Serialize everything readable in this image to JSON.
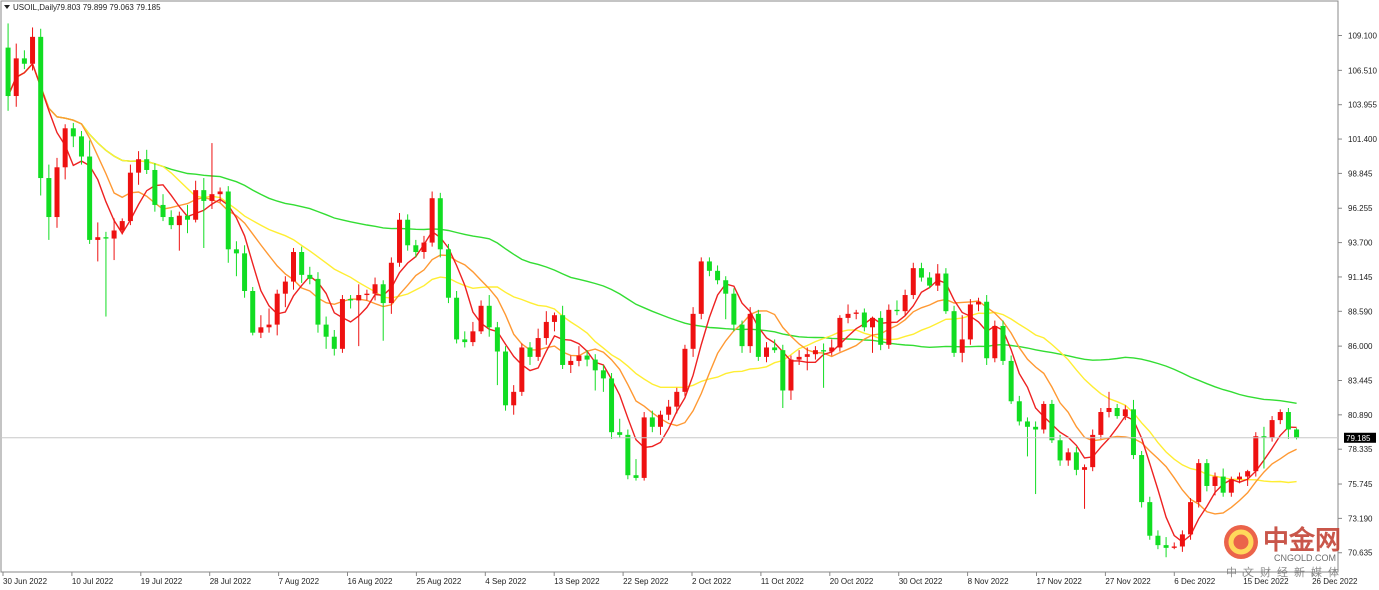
{
  "header": {
    "symbol": "USOIL,Daily",
    "ohlc": "79.803 79.899 79.063 79.185"
  },
  "current_price": "79.185",
  "watermark": {
    "brand": "中金网",
    "domain": "CNGOLD.COM",
    "tagline": "中文财经新媒体"
  },
  "colors": {
    "up": "#ee1111",
    "down": "#11dd22",
    "ma_fast": "#ee2222",
    "ma_mid": "#ff9933",
    "ma_slow": "#ffee33",
    "ma_long": "#33dd33",
    "price_line": "#c8c8c8"
  },
  "chart_data": {
    "type": "candlestick",
    "y_tick_labels": [
      "109.100",
      "106.510",
      "103.955",
      "101.400",
      "98.845",
      "96.255",
      "93.700",
      "91.145",
      "88.590",
      "86.000",
      "83.445",
      "80.890",
      "78.335",
      "75.745",
      "73.190",
      "70.635"
    ],
    "ylim": [
      69.5,
      110.7
    ],
    "x_tick_labels": [
      "30 Jun 2022",
      "10 Jul 2022",
      "19 Jul 2022",
      "28 Jul 2022",
      "7 Aug 2022",
      "16 Aug 2022",
      "25 Aug 2022",
      "4 Sep 2022",
      "13 Sep 2022",
      "22 Sep 2022",
      "2 Oct 2022",
      "11 Oct 2022",
      "20 Oct 2022",
      "30 Oct 2022",
      "8 Nov 2022",
      "17 Nov 2022",
      "27 Nov 2022",
      "6 Dec 2022",
      "15 Dec 2022",
      "26 Dec 2022"
    ],
    "candles": [
      {
        "o": 108.2,
        "h": 110.0,
        "l": 103.5,
        "c": 104.6
      },
      {
        "o": 104.6,
        "h": 108.5,
        "l": 103.8,
        "c": 107.4
      },
      {
        "o": 107.4,
        "h": 108.0,
        "l": 106.6,
        "c": 107.0
      },
      {
        "o": 107.0,
        "h": 109.7,
        "l": 106.5,
        "c": 109.0
      },
      {
        "o": 109.0,
        "h": 109.6,
        "l": 97.2,
        "c": 98.5
      },
      {
        "o": 98.5,
        "h": 99.5,
        "l": 93.9,
        "c": 95.6
      },
      {
        "o": 95.6,
        "h": 100.0,
        "l": 94.8,
        "c": 99.3
      },
      {
        "o": 99.3,
        "h": 102.5,
        "l": 98.4,
        "c": 102.2
      },
      {
        "o": 102.2,
        "h": 102.6,
        "l": 100.8,
        "c": 101.6
      },
      {
        "o": 101.6,
        "h": 102.0,
        "l": 99.5,
        "c": 100.1
      },
      {
        "o": 100.1,
        "h": 101.3,
        "l": 93.6,
        "c": 93.9
      },
      {
        "o": 93.9,
        "h": 95.2,
        "l": 92.3,
        "c": 94.1
      },
      {
        "o": 94.1,
        "h": 94.5,
        "l": 88.2,
        "c": 94.0
      },
      {
        "o": 94.0,
        "h": 95.5,
        "l": 92.4,
        "c": 94.6
      },
      {
        "o": 94.6,
        "h": 95.5,
        "l": 94.3,
        "c": 95.3
      },
      {
        "o": 95.3,
        "h": 99.5,
        "l": 95.0,
        "c": 98.9
      },
      {
        "o": 98.9,
        "h": 100.5,
        "l": 98.0,
        "c": 99.9
      },
      {
        "o": 99.9,
        "h": 100.6,
        "l": 98.8,
        "c": 99.1
      },
      {
        "o": 99.1,
        "h": 99.6,
        "l": 96.0,
        "c": 96.5
      },
      {
        "o": 96.5,
        "h": 97.3,
        "l": 95.3,
        "c": 95.6
      },
      {
        "o": 95.6,
        "h": 96.1,
        "l": 94.7,
        "c": 95.0
      },
      {
        "o": 95.0,
        "h": 96.0,
        "l": 93.1,
        "c": 95.7
      },
      {
        "o": 95.7,
        "h": 96.5,
        "l": 94.4,
        "c": 95.4
      },
      {
        "o": 95.4,
        "h": 98.3,
        "l": 95.2,
        "c": 97.6
      },
      {
        "o": 97.6,
        "h": 98.5,
        "l": 93.3,
        "c": 96.8
      },
      {
        "o": 96.8,
        "h": 101.1,
        "l": 96.2,
        "c": 97.3
      },
      {
        "o": 97.3,
        "h": 97.8,
        "l": 96.7,
        "c": 97.5
      },
      {
        "o": 97.5,
        "h": 97.9,
        "l": 92.2,
        "c": 93.2
      },
      {
        "o": 93.2,
        "h": 93.8,
        "l": 91.2,
        "c": 92.9
      },
      {
        "o": 92.9,
        "h": 93.5,
        "l": 89.6,
        "c": 90.1
      },
      {
        "o": 90.1,
        "h": 90.4,
        "l": 86.8,
        "c": 87.0
      },
      {
        "o": 87.0,
        "h": 88.3,
        "l": 86.6,
        "c": 87.4
      },
      {
        "o": 87.4,
        "h": 88.8,
        "l": 87.0,
        "c": 87.6
      },
      {
        "o": 87.6,
        "h": 90.2,
        "l": 86.8,
        "c": 89.9
      },
      {
        "o": 89.9,
        "h": 91.2,
        "l": 88.9,
        "c": 90.8
      },
      {
        "o": 90.8,
        "h": 93.3,
        "l": 90.2,
        "c": 93.0
      },
      {
        "o": 93.0,
        "h": 93.4,
        "l": 90.7,
        "c": 91.3
      },
      {
        "o": 91.3,
        "h": 91.9,
        "l": 90.6,
        "c": 91.0
      },
      {
        "o": 91.0,
        "h": 91.5,
        "l": 87.0,
        "c": 87.6
      },
      {
        "o": 87.6,
        "h": 88.2,
        "l": 85.8,
        "c": 86.7
      },
      {
        "o": 86.7,
        "h": 87.2,
        "l": 85.3,
        "c": 85.8
      },
      {
        "o": 85.8,
        "h": 89.8,
        "l": 85.5,
        "c": 89.5
      },
      {
        "o": 89.5,
        "h": 89.8,
        "l": 88.8,
        "c": 89.4
      },
      {
        "o": 89.4,
        "h": 90.6,
        "l": 86.0,
        "c": 89.8
      },
      {
        "o": 89.8,
        "h": 90.2,
        "l": 89.4,
        "c": 89.9
      },
      {
        "o": 89.9,
        "h": 91.1,
        "l": 89.4,
        "c": 90.6
      },
      {
        "o": 90.6,
        "h": 90.9,
        "l": 86.4,
        "c": 89.2
      },
      {
        "o": 89.2,
        "h": 92.6,
        "l": 88.4,
        "c": 92.2
      },
      {
        "o": 92.2,
        "h": 95.9,
        "l": 91.9,
        "c": 95.4
      },
      {
        "o": 95.4,
        "h": 95.8,
        "l": 93.1,
        "c": 93.5
      },
      {
        "o": 93.5,
        "h": 93.9,
        "l": 92.6,
        "c": 93.0
      },
      {
        "o": 93.0,
        "h": 94.2,
        "l": 92.5,
        "c": 93.7
      },
      {
        "o": 93.7,
        "h": 97.5,
        "l": 93.4,
        "c": 97.0
      },
      {
        "o": 97.0,
        "h": 97.4,
        "l": 92.6,
        "c": 93.2
      },
      {
        "o": 93.2,
        "h": 93.6,
        "l": 89.2,
        "c": 89.6
      },
      {
        "o": 89.6,
        "h": 90.1,
        "l": 86.2,
        "c": 86.5
      },
      {
        "o": 86.5,
        "h": 87.1,
        "l": 85.9,
        "c": 86.3
      },
      {
        "o": 86.3,
        "h": 87.8,
        "l": 86.0,
        "c": 87.1
      },
      {
        "o": 87.1,
        "h": 89.4,
        "l": 86.9,
        "c": 89.0
      },
      {
        "o": 89.0,
        "h": 89.8,
        "l": 86.7,
        "c": 87.4
      },
      {
        "o": 87.4,
        "h": 87.8,
        "l": 83.1,
        "c": 85.6
      },
      {
        "o": 85.6,
        "h": 86.0,
        "l": 81.2,
        "c": 81.6
      },
      {
        "o": 81.6,
        "h": 83.1,
        "l": 80.9,
        "c": 82.6
      },
      {
        "o": 82.6,
        "h": 86.2,
        "l": 82.3,
        "c": 85.9
      },
      {
        "o": 85.9,
        "h": 86.3,
        "l": 84.6,
        "c": 85.2
      },
      {
        "o": 85.2,
        "h": 87.3,
        "l": 84.9,
        "c": 86.6
      },
      {
        "o": 86.6,
        "h": 88.6,
        "l": 86.1,
        "c": 87.8
      },
      {
        "o": 87.8,
        "h": 88.5,
        "l": 87.1,
        "c": 88.3
      },
      {
        "o": 88.3,
        "h": 89.0,
        "l": 84.3,
        "c": 84.6
      },
      {
        "o": 84.6,
        "h": 85.3,
        "l": 84.0,
        "c": 84.9
      },
      {
        "o": 84.9,
        "h": 86.0,
        "l": 84.5,
        "c": 85.3
      },
      {
        "o": 85.3,
        "h": 85.7,
        "l": 84.5,
        "c": 85.0
      },
      {
        "o": 85.0,
        "h": 85.4,
        "l": 82.7,
        "c": 84.2
      },
      {
        "o": 84.2,
        "h": 84.6,
        "l": 82.6,
        "c": 83.6
      },
      {
        "o": 83.6,
        "h": 84.0,
        "l": 79.1,
        "c": 79.6
      },
      {
        "o": 79.6,
        "h": 80.6,
        "l": 79.2,
        "c": 79.4
      },
      {
        "o": 79.4,
        "h": 79.8,
        "l": 76.1,
        "c": 76.4
      },
      {
        "o": 76.4,
        "h": 77.6,
        "l": 76.0,
        "c": 76.2
      },
      {
        "o": 76.2,
        "h": 81.1,
        "l": 76.0,
        "c": 80.7
      },
      {
        "o": 80.7,
        "h": 81.2,
        "l": 79.6,
        "c": 80.0
      },
      {
        "o": 80.0,
        "h": 81.2,
        "l": 79.4,
        "c": 80.9
      },
      {
        "o": 80.9,
        "h": 82.0,
        "l": 80.5,
        "c": 81.5
      },
      {
        "o": 81.5,
        "h": 82.9,
        "l": 81.0,
        "c": 82.6
      },
      {
        "o": 82.6,
        "h": 86.1,
        "l": 82.3,
        "c": 85.8
      },
      {
        "o": 85.8,
        "h": 88.9,
        "l": 85.2,
        "c": 88.4
      },
      {
        "o": 88.4,
        "h": 92.6,
        "l": 88.0,
        "c": 92.3
      },
      {
        "o": 92.3,
        "h": 92.6,
        "l": 91.2,
        "c": 91.6
      },
      {
        "o": 91.6,
        "h": 92.0,
        "l": 90.6,
        "c": 90.9
      },
      {
        "o": 90.9,
        "h": 91.2,
        "l": 88.0,
        "c": 89.9
      },
      {
        "o": 89.9,
        "h": 90.3,
        "l": 87.1,
        "c": 87.6
      },
      {
        "o": 87.6,
        "h": 87.9,
        "l": 85.5,
        "c": 86.0
      },
      {
        "o": 86.0,
        "h": 88.9,
        "l": 85.5,
        "c": 88.4
      },
      {
        "o": 88.4,
        "h": 88.7,
        "l": 84.9,
        "c": 85.2
      },
      {
        "o": 85.2,
        "h": 86.3,
        "l": 84.8,
        "c": 85.9
      },
      {
        "o": 85.9,
        "h": 86.5,
        "l": 85.5,
        "c": 85.7
      },
      {
        "o": 85.7,
        "h": 86.1,
        "l": 81.4,
        "c": 82.7
      },
      {
        "o": 82.7,
        "h": 85.3,
        "l": 82.0,
        "c": 85.0
      },
      {
        "o": 85.0,
        "h": 85.7,
        "l": 84.6,
        "c": 85.2
      },
      {
        "o": 85.2,
        "h": 85.9,
        "l": 84.2,
        "c": 85.4
      },
      {
        "o": 85.4,
        "h": 86.0,
        "l": 85.0,
        "c": 85.7
      },
      {
        "o": 85.7,
        "h": 86.2,
        "l": 82.9,
        "c": 85.6
      },
      {
        "o": 85.6,
        "h": 86.5,
        "l": 85.3,
        "c": 85.9
      },
      {
        "o": 85.9,
        "h": 88.3,
        "l": 85.6,
        "c": 88.1
      },
      {
        "o": 88.1,
        "h": 89.1,
        "l": 87.7,
        "c": 88.4
      },
      {
        "o": 88.4,
        "h": 88.7,
        "l": 88.0,
        "c": 88.5
      },
      {
        "o": 88.5,
        "h": 88.8,
        "l": 87.1,
        "c": 87.4
      },
      {
        "o": 87.4,
        "h": 88.2,
        "l": 85.5,
        "c": 88.1
      },
      {
        "o": 88.1,
        "h": 88.6,
        "l": 85.7,
        "c": 86.1
      },
      {
        "o": 86.1,
        "h": 89.1,
        "l": 85.8,
        "c": 88.7
      },
      {
        "o": 88.7,
        "h": 89.4,
        "l": 88.3,
        "c": 88.6
      },
      {
        "o": 88.6,
        "h": 90.2,
        "l": 88.3,
        "c": 89.8
      },
      {
        "o": 89.8,
        "h": 92.2,
        "l": 89.5,
        "c": 91.8
      },
      {
        "o": 91.8,
        "h": 92.2,
        "l": 90.8,
        "c": 91.1
      },
      {
        "o": 91.1,
        "h": 91.5,
        "l": 90.3,
        "c": 90.5
      },
      {
        "o": 90.5,
        "h": 92.1,
        "l": 90.1,
        "c": 91.4
      },
      {
        "o": 91.4,
        "h": 91.8,
        "l": 88.4,
        "c": 88.6
      },
      {
        "o": 88.6,
        "h": 89.0,
        "l": 85.2,
        "c": 85.5
      },
      {
        "o": 85.5,
        "h": 88.3,
        "l": 84.8,
        "c": 86.5
      },
      {
        "o": 86.5,
        "h": 89.5,
        "l": 86.1,
        "c": 89.1
      },
      {
        "o": 89.1,
        "h": 89.6,
        "l": 88.6,
        "c": 89.3
      },
      {
        "o": 89.3,
        "h": 89.8,
        "l": 84.6,
        "c": 85.1
      },
      {
        "o": 85.1,
        "h": 87.9,
        "l": 84.8,
        "c": 87.5
      },
      {
        "o": 87.5,
        "h": 87.9,
        "l": 84.6,
        "c": 84.9
      },
      {
        "o": 84.9,
        "h": 85.3,
        "l": 81.7,
        "c": 81.9
      },
      {
        "o": 81.9,
        "h": 82.3,
        "l": 80.1,
        "c": 80.4
      },
      {
        "o": 80.4,
        "h": 80.7,
        "l": 77.8,
        "c": 80.0
      },
      {
        "o": 80.0,
        "h": 80.4,
        "l": 75.0,
        "c": 79.8
      },
      {
        "o": 79.8,
        "h": 81.9,
        "l": 79.5,
        "c": 81.7
      },
      {
        "o": 81.7,
        "h": 82.0,
        "l": 78.8,
        "c": 79.0
      },
      {
        "o": 79.0,
        "h": 79.4,
        "l": 77.1,
        "c": 77.5
      },
      {
        "o": 77.5,
        "h": 78.4,
        "l": 77.1,
        "c": 78.1
      },
      {
        "o": 78.1,
        "h": 78.5,
        "l": 76.4,
        "c": 76.8
      },
      {
        "o": 76.8,
        "h": 77.2,
        "l": 73.9,
        "c": 77.0
      },
      {
        "o": 77.0,
        "h": 79.8,
        "l": 76.7,
        "c": 79.4
      },
      {
        "o": 79.4,
        "h": 81.4,
        "l": 79.1,
        "c": 81.1
      },
      {
        "o": 81.1,
        "h": 82.6,
        "l": 80.7,
        "c": 81.4
      },
      {
        "o": 81.4,
        "h": 81.7,
        "l": 80.6,
        "c": 80.8
      },
      {
        "o": 80.8,
        "h": 81.6,
        "l": 80.5,
        "c": 81.3
      },
      {
        "o": 81.3,
        "h": 82.0,
        "l": 77.6,
        "c": 77.9
      },
      {
        "o": 77.9,
        "h": 78.2,
        "l": 74.0,
        "c": 74.4
      },
      {
        "o": 74.4,
        "h": 74.8,
        "l": 71.6,
        "c": 71.9
      },
      {
        "o": 71.9,
        "h": 72.3,
        "l": 70.9,
        "c": 71.2
      },
      {
        "o": 71.2,
        "h": 71.8,
        "l": 70.3,
        "c": 71.0
      },
      {
        "o": 71.0,
        "h": 71.4,
        "l": 70.9,
        "c": 71.1
      },
      {
        "o": 71.1,
        "h": 72.3,
        "l": 70.7,
        "c": 72.0
      },
      {
        "o": 72.0,
        "h": 74.7,
        "l": 71.6,
        "c": 74.4
      },
      {
        "o": 74.4,
        "h": 77.6,
        "l": 74.0,
        "c": 77.3
      },
      {
        "o": 77.3,
        "h": 77.6,
        "l": 75.2,
        "c": 75.6
      },
      {
        "o": 75.6,
        "h": 76.6,
        "l": 74.9,
        "c": 76.3
      },
      {
        "o": 76.3,
        "h": 76.9,
        "l": 74.8,
        "c": 75.1
      },
      {
        "o": 75.1,
        "h": 76.3,
        "l": 74.8,
        "c": 76.1
      },
      {
        "o": 76.1,
        "h": 76.6,
        "l": 75.8,
        "c": 76.3
      },
      {
        "o": 76.3,
        "h": 76.8,
        "l": 75.6,
        "c": 76.7
      },
      {
        "o": 76.7,
        "h": 79.6,
        "l": 76.3,
        "c": 79.3
      },
      {
        "o": 79.3,
        "h": 80.0,
        "l": 76.9,
        "c": 79.2
      },
      {
        "o": 79.2,
        "h": 80.8,
        "l": 78.9,
        "c": 80.5
      },
      {
        "o": 80.5,
        "h": 81.3,
        "l": 80.2,
        "c": 81.1
      },
      {
        "o": 81.1,
        "h": 81.4,
        "l": 79.1,
        "c": 79.8
      },
      {
        "o": 79.803,
        "h": 79.899,
        "l": 79.063,
        "c": 79.185
      }
    ]
  }
}
